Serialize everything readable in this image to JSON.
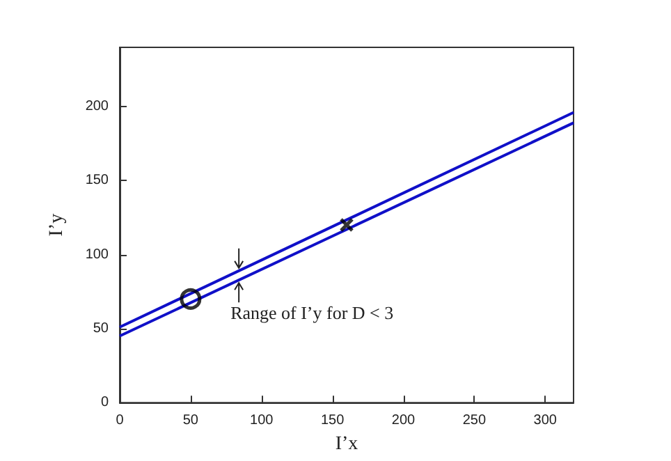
{
  "chart_data": {
    "type": "line",
    "xlabel": "I’x",
    "ylabel": "I’y",
    "xlim": [
      0,
      320
    ],
    "xticks": [
      0,
      50,
      100,
      150,
      200,
      250,
      300
    ],
    "ylim": [
      0,
      240
    ],
    "yticks": [
      0,
      50,
      100,
      150,
      200
    ],
    "grid": false,
    "marker": "none",
    "line_style": "solid",
    "series": [
      {
        "color": "#1010c8",
        "x": [
          0,
          320
        ],
        "values": [
          51,
          196
        ]
      },
      {
        "color": "#1010c8",
        "x": [
          0,
          320
        ],
        "values": [
          45,
          189
        ]
      },
      {
        "type": "scatter",
        "marker": "circle",
        "color": "#000000",
        "x": [
          50
        ],
        "values": [
          70
        ]
      },
      {
        "type": "scatter",
        "marker": "cross",
        "color": "#000000",
        "x": [
          160
        ],
        "values": [
          120
        ]
      }
    ],
    "annotations": [
      {
        "text": "Range of I’y for D < 3",
        "x": 84,
        "y": 85
      }
    ]
  }
}
